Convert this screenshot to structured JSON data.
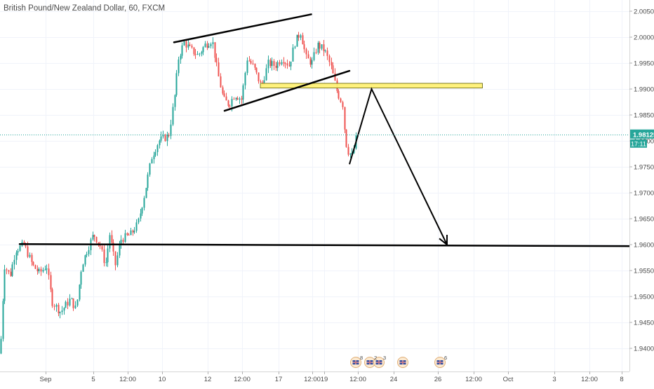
{
  "header": {
    "title": "British Pound/New Zealand Dollar, 60, FXCM"
  },
  "chart_data": {
    "type": "candlestick",
    "symbol": "British Pound/New Zealand Dollar",
    "interval": "60",
    "source": "FXCM",
    "y_axis": {
      "side": "right",
      "range": [
        1.9365,
        2.0065
      ],
      "ticks": [
        "2.00500",
        "2.00000",
        "1.99500",
        "1.99000",
        "1.98500",
        "1.98000",
        "1.97500",
        "1.97000",
        "1.96500",
        "1.96000",
        "1.95500",
        "1.95000",
        "1.94500",
        "1.94000"
      ]
    },
    "x_axis": {
      "ticks": [
        "Sep",
        "5",
        "12:00",
        "10",
        "12",
        "12:00",
        "17",
        "12:00",
        "19",
        "12:00",
        "24",
        "26",
        "12:00",
        "Oct",
        "3",
        "12:00",
        "8"
      ]
    },
    "price_label": {
      "value": "1.98125",
      "countdown": "17:11",
      "color": "#26a69a"
    },
    "current_price": 1.98125,
    "colors": {
      "up": "#26a69a",
      "down": "#ef5350",
      "highlight_zone": "#fff176",
      "drawing": "#000000"
    },
    "grid": true,
    "drawings": {
      "channel_upper": [
        [
          "Sep 10 12:00",
          1.999
        ],
        [
          "Sep 18 12:00",
          2.0044
        ]
      ],
      "channel_lower": [
        [
          "Sep 13 00:00",
          1.9858
        ],
        [
          "Sep 21 00:00",
          1.9935
        ]
      ],
      "supply_zone": {
        "from": "Sep 14 00:00",
        "to": "Sep 28 12:00",
        "top": 1.9911,
        "bottom": 1.9902
      },
      "support_line": [
        [
          "Sep 1 00:00",
          1.9601
        ],
        [
          "Oct 9 00:00",
          1.9597
        ]
      ],
      "projection_path": [
        [
          "Sep 21 00:00",
          1.9755
        ],
        [
          "Sep 22 12:00",
          1.99
        ],
        [
          "Sep 26 12:00",
          1.96
        ]
      ]
    },
    "event_markers": [
      "8",
      "2",
      "3",
      "6"
    ]
  }
}
